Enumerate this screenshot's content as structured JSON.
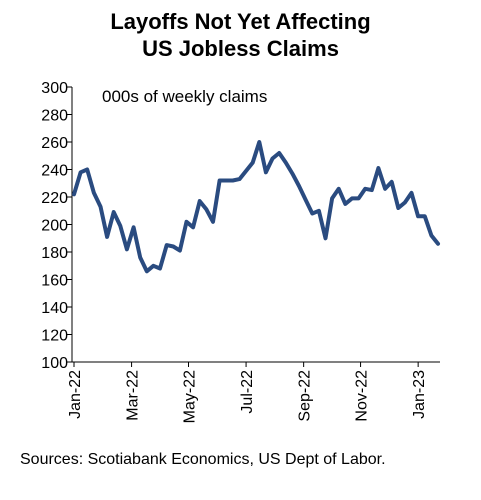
{
  "chart_data": {
    "type": "line",
    "title": [
      "Layoffs Not Yet Affecting",
      "US Jobless Claims"
    ],
    "subtitle": "000s of weekly claims",
    "xlabel": "",
    "ylabel": "",
    "ylim": [
      100,
      300
    ],
    "y_ticks": [
      100,
      120,
      140,
      160,
      180,
      200,
      220,
      240,
      260,
      280,
      300
    ],
    "x_tick_labels": [
      "Jan-22",
      "Mar-22",
      "May-22",
      "Jul-22",
      "Sep-22",
      "Nov-22",
      "Jan-23"
    ],
    "x_tick_weeks": [
      0,
      8.7,
      17.3,
      26,
      34.7,
      43.3,
      52
    ],
    "grid": false,
    "legend": "none",
    "line_color": "#2a4b80",
    "series": [
      {
        "values": [
          222,
          238,
          240,
          223,
          213,
          191,
          209,
          199,
          182,
          198,
          176,
          166,
          170,
          168,
          185,
          184,
          181,
          202,
          198,
          217,
          211,
          202,
          232,
          232,
          232,
          233,
          239,
          245,
          260,
          238,
          248,
          252,
          245,
          237,
          228,
          218,
          208,
          210,
          190,
          219,
          226,
          215,
          219,
          219,
          226,
          225,
          241,
          226,
          231,
          212,
          216,
          223,
          206,
          206,
          192,
          186
        ]
      }
    ]
  },
  "source_note": "Sources: Scotiabank Economics, US Dept of Labor."
}
